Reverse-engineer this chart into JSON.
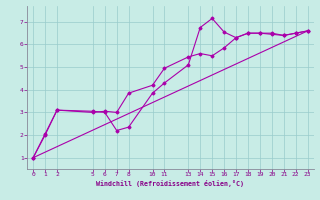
{
  "xlabel": "Windchill (Refroidissement éolien,°C)",
  "ylabel": "",
  "xlim": [
    -0.5,
    23.5
  ],
  "ylim": [
    0.5,
    7.7
  ],
  "xticks": [
    0,
    1,
    2,
    5,
    6,
    7,
    8,
    10,
    11,
    13,
    14,
    15,
    16,
    17,
    18,
    19,
    20,
    21,
    22,
    23
  ],
  "yticks": [
    1,
    2,
    3,
    4,
    5,
    6,
    7
  ],
  "bg_color": "#c8ece6",
  "line_color": "#aa00aa",
  "grid_color": "#99cccc",
  "line1_x": [
    0,
    1,
    2,
    5,
    6,
    7,
    8,
    10,
    11,
    13,
    14,
    15,
    16,
    17,
    18,
    19,
    20,
    21,
    22,
    23
  ],
  "line1_y": [
    1.0,
    2.0,
    3.1,
    3.05,
    3.0,
    2.2,
    2.35,
    3.85,
    4.3,
    5.1,
    6.75,
    7.15,
    6.55,
    6.3,
    6.5,
    6.5,
    6.5,
    6.4,
    6.5,
    6.6
  ],
  "line2_x": [
    0,
    1,
    2,
    5,
    6,
    7,
    8,
    10,
    11,
    13,
    14,
    15,
    16,
    17,
    18,
    19,
    20,
    21,
    22,
    23
  ],
  "line2_y": [
    1.0,
    2.05,
    3.1,
    3.0,
    3.05,
    3.0,
    3.85,
    4.2,
    4.95,
    5.45,
    5.6,
    5.5,
    5.85,
    6.3,
    6.5,
    6.5,
    6.45,
    6.4,
    6.5,
    6.6
  ],
  "line3_x": [
    0,
    23
  ],
  "line3_y": [
    1.0,
    6.6
  ]
}
